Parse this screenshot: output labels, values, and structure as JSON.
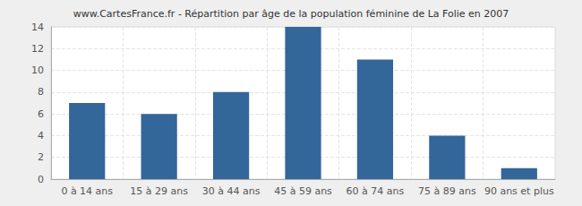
{
  "chart_data": {
    "type": "bar",
    "title": "www.CartesFrance.fr - Répartition par âge de la population féminine de La Folie en 2007",
    "categories": [
      "0 à 14 ans",
      "15 à 29 ans",
      "30 à 44 ans",
      "45 à 59 ans",
      "60 à 74 ans",
      "75 à 89 ans",
      "90 ans et plus"
    ],
    "values": [
      7,
      6,
      8,
      14,
      11,
      4,
      1
    ],
    "color": "#336699",
    "ylim": [
      0,
      14
    ],
    "yticks": [
      0,
      2,
      4,
      6,
      8,
      10,
      12,
      14
    ],
    "grid": true
  }
}
